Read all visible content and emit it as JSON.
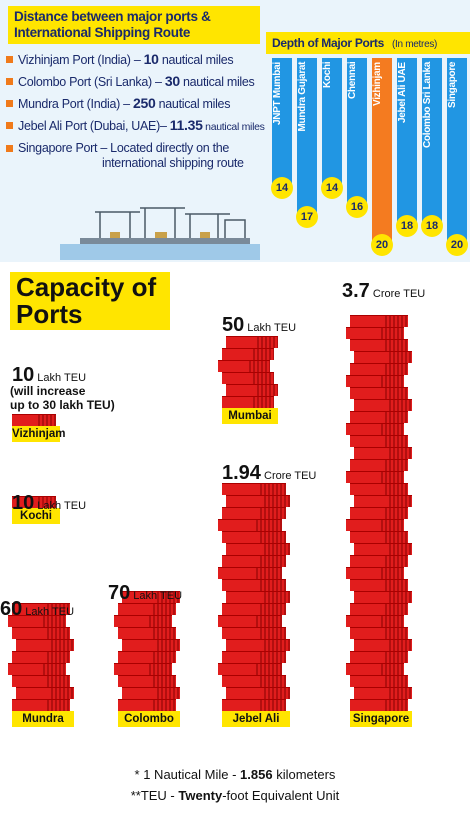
{
  "top": {
    "title_line1": "Distance between major ports &",
    "title_line2": "International Shipping Route",
    "distances": [
      {
        "pre": "Vizhinjam Port (India) – ",
        "value": "10",
        "post": " nautical miles"
      },
      {
        "pre": "Colombo Port (Sri Lanka) – ",
        "value": "30",
        "post": " nautical miles"
      },
      {
        "pre": "Mundra Port (India) – ",
        "value": "250",
        "post": " nautical miles"
      },
      {
        "pre": "Jebel Ali Port (Dubai, UAE)– ",
        "value": "11.35",
        "post": " nautical miles"
      },
      {
        "pre": "Singapore Port – Located directly on the",
        "value": "",
        "post": ""
      }
    ],
    "singapore_line2": "international shipping route"
  },
  "depth": {
    "title": "Depth of Major Ports",
    "unit": "(In metres)"
  },
  "capacity": {
    "title_line1": "Capacity of",
    "title_line2": "Ports",
    "viz_note_line1": "(will increase",
    "viz_note_line2_pre": "up to ",
    "viz_note_line2_num": "30",
    "viz_note_line2_post": " lakh TEU)"
  },
  "footer": {
    "line1_pre": "* 1 Nautical Mile - ",
    "line1_num": "1.856",
    "line1_post": " kilometers",
    "line2_pre": "**TEU  - ",
    "line2_bold": "Twenty",
    "line2_post": "-foot Equivalent Unit"
  },
  "colors": {
    "accent_yellow": "#ffe500",
    "depth_blue": "#2196e3",
    "depth_orange": "#f47b20",
    "brick_red": "#e11d1d"
  },
  "chart_data": [
    {
      "type": "bar",
      "title": "Depth of Major Ports",
      "ylabel": "(In metres)",
      "categories": [
        "JNPT Mumbai",
        "Mundra Gujarat",
        "Kochi",
        "Chennai",
        "Vizhinjam",
        "Jebel Ali UAE",
        "Colombo Sri Lanka",
        "Singapore"
      ],
      "values": [
        14,
        17,
        14,
        16,
        20,
        18,
        18,
        20
      ],
      "highlight": "Vizhinjam"
    },
    {
      "type": "bar",
      "title": "Capacity of Ports",
      "categories": [
        "Vizhinjam",
        "Kochi",
        "Mundra",
        "Colombo",
        "Mumbai",
        "Jebel Ali",
        "Singapore"
      ],
      "value_labels": [
        {
          "num": "10",
          "unit": "Lakh TEU"
        },
        {
          "num": "10",
          "unit": "Lakh TEU"
        },
        {
          "num": "60",
          "unit": "Lakh TEU"
        },
        {
          "num": "70",
          "unit": "Lakh TEU"
        },
        {
          "num": "50",
          "unit": "Lakh TEU"
        },
        {
          "num": "1.94",
          "unit": "Crore TEU"
        },
        {
          "num": "3.7",
          "unit": "Crore TEU"
        }
      ],
      "values_lakh_teu": [
        10,
        10,
        60,
        70,
        50,
        194,
        370
      ]
    }
  ]
}
